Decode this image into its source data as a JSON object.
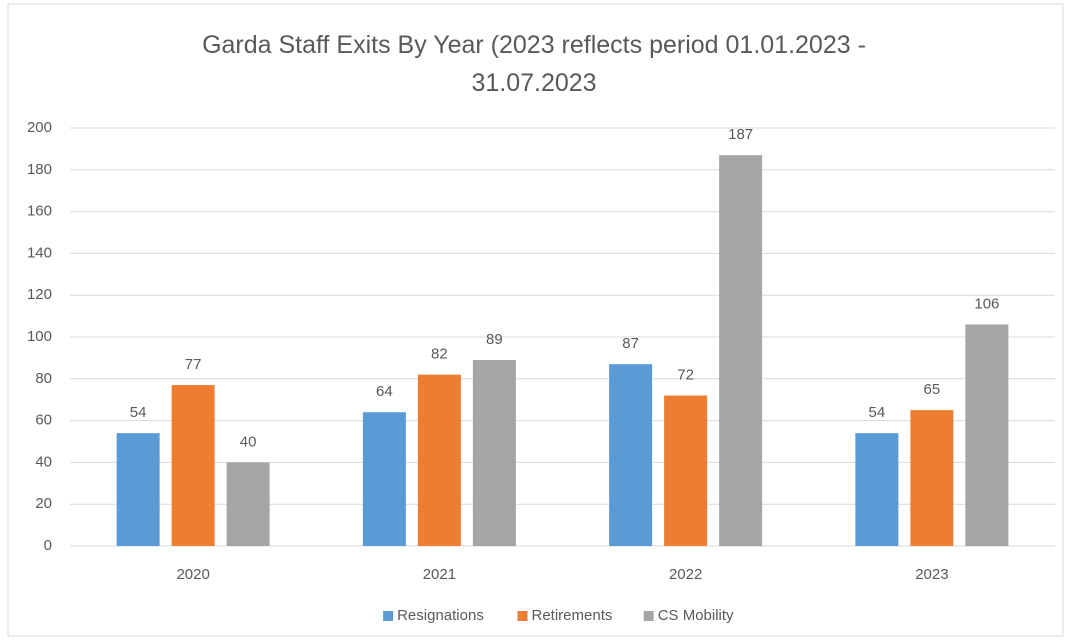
{
  "chart_data": {
    "type": "bar",
    "title": "Garda Staff Exits By Year (2023 reflects period 01.01.2023 - 31.07.2023",
    "categories": [
      "2020",
      "2021",
      "2022",
      "2023"
    ],
    "series": [
      {
        "name": "Resignations",
        "color": "#5b9bd5",
        "values": [
          54,
          64,
          87,
          54
        ]
      },
      {
        "name": "Retirements",
        "color": "#ed7d31",
        "values": [
          77,
          82,
          72,
          65
        ]
      },
      {
        "name": "CS Mobility",
        "color": "#a5a5a5",
        "values": [
          40,
          89,
          187,
          106
        ]
      }
    ],
    "ylim": [
      0,
      200
    ],
    "yticks": [
      0,
      20,
      40,
      60,
      80,
      100,
      120,
      140,
      160,
      180,
      200
    ],
    "grid": true,
    "legend": "bottom"
  }
}
